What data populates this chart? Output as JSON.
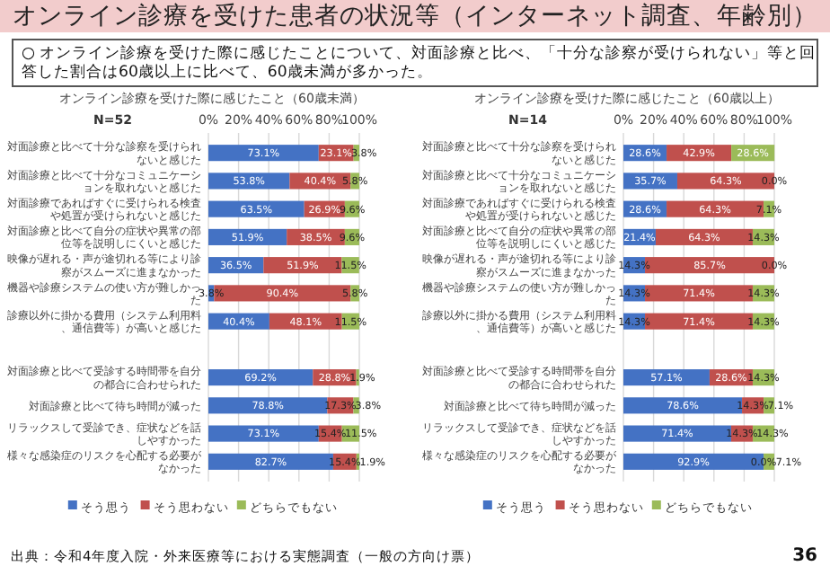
{
  "chart_data": [
    {
      "type": "bar",
      "orientation": "horizontal",
      "stacked": true,
      "title": "オンライン診療を受けた際に感じたこと（60歳未満）",
      "categories": [
        "対面診療と比べて十分な診察を受けられないと感じた",
        "対面診療と比べて十分なコミュニケーションを取れないと感じた",
        "対面診療であればすぐに受けられる検査や処置が受けられないと感じた",
        "対面診療と比べて自分の症状や異常の部位等を説明しにくいと感じた",
        "映像が遅れる・声が途切れる等により診察がスムーズに進まなかった",
        "機器や診療システムの使い方が難しかった",
        "診療以外に掛かる費用（システム利用料、通信費等）が高いと感じた",
        null,
        "対面診療と比べて受診する時間帯を自分の都合に合わせられた",
        "対面診療と比べて待ち時間が減った",
        "リラックスして受診でき、症状などを話しやすかった",
        "様々な感染症のリスクを心配する必要がなかった"
      ],
      "series": [
        {
          "name": "そう思う",
          "color": "#4472c4",
          "values": [
            73.1,
            53.8,
            63.5,
            51.9,
            36.5,
            3.8,
            40.4,
            null,
            69.2,
            78.8,
            73.1,
            82.7
          ],
          "value_labels": [
            "73.1%",
            "53.8%",
            "63.5%",
            "51.9%",
            "36.5%",
            "3.8%",
            "40.4%",
            null,
            "69.2%",
            "78.8%",
            "73.1%",
            "82.7%"
          ]
        },
        {
          "name": "そう思わない",
          "color": "#c0504d",
          "values": [
            23.1,
            40.4,
            26.9,
            38.5,
            51.9,
            90.4,
            48.1,
            null,
            28.8,
            17.3,
            15.4,
            15.4
          ],
          "value_labels": [
            "23.1%",
            "40.4%",
            "26.9%",
            "38.5%",
            "51.9%",
            "90.4%",
            "48.1%",
            null,
            "28.8%",
            "17.3%",
            "15.4%",
            "15.4%"
          ]
        },
        {
          "name": "どちらでもない",
          "color": "#9bbb59",
          "values": [
            3.8,
            5.8,
            9.6,
            9.6,
            11.5,
            5.8,
            11.5,
            null,
            1.9,
            3.8,
            11.5,
            1.9
          ],
          "value_labels": [
            "3.8%",
            "5.8%",
            "9.6%",
            "9.6%",
            "11.5%",
            "5.8%",
            "11.5%",
            null,
            "1.9%",
            "3.8%",
            "11.5%",
            "1.9%"
          ]
        }
      ],
      "xlim": [
        0,
        100
      ],
      "xticks": [
        {
          "value": 0,
          "label": "0%"
        },
        {
          "value": 20,
          "label": "20%"
        },
        {
          "value": 40,
          "label": "40%"
        },
        {
          "value": 60,
          "label": "60%"
        },
        {
          "value": 80,
          "label": "80%"
        },
        {
          "value": 100,
          "label": "100%"
        }
      ],
      "grid": "x",
      "legend": "bottom",
      "annotations": [
        "N=52",
        "オンライン診療を受けた患者の状況等（インターネット調査、年齢別）",
        "○ オンライン診療を受けた際に感じたことについて、対面診療と比べ、「十分な診察が受けられない」等と回答した割合は60歳以上に比べて、60歳未満が多かった。",
        "出典：令和4年度入院・外来医療等における実態調査（一般の方向け票）"
      ]
    },
    {
      "type": "bar",
      "orientation": "horizontal",
      "stacked": true,
      "title": "オンライン診療を受けた際に感じたこと（60歳以上）",
      "categories": [
        "対面診療と比べて十分な診察を受けられないと感じた",
        "対面診療と比べて十分なコミュニケーションを取れないと感じた",
        "対面診療であればすぐに受けられる検査や処置が受けられないと感じた",
        "対面診療と比べて自分の症状や異常の部位等を説明しにくいと感じた",
        "映像が遅れる・声が途切れる等により診察がスムーズに進まなかった",
        "機器や診療システムの使い方が難しかった",
        "診療以外に掛かる費用（システム利用料、通信費等）が高いと感じた",
        null,
        "対面診療と比べて受診する時間帯を自分の都合に合わせられた",
        "対面診療と比べて待ち時間が減った",
        "リラックスして受診でき、症状などを話しやすかった",
        "様々な感染症のリスクを心配する必要がなかった"
      ],
      "series": [
        {
          "name": "そう思う",
          "color": "#4472c4",
          "values": [
            28.6,
            35.7,
            28.6,
            21.4,
            14.3,
            14.3,
            14.3,
            null,
            57.1,
            78.6,
            71.4,
            92.9
          ],
          "value_labels": [
            "28.6%",
            "35.7%",
            "28.6%",
            "21.4%",
            "14.3%",
            "14.3%",
            "14.3%",
            null,
            "57.1%",
            "78.6%",
            "71.4%",
            "92.9%"
          ]
        },
        {
          "name": "そう思わない",
          "color": "#c0504d",
          "values": [
            42.9,
            64.3,
            64.3,
            64.3,
            85.7,
            71.4,
            71.4,
            null,
            28.6,
            14.3,
            14.3,
            0.0
          ],
          "value_labels": [
            "42.9%",
            "64.3%",
            "64.3%",
            "64.3%",
            "85.7%",
            "71.4%",
            "71.4%",
            null,
            "28.6%",
            "14.3%",
            "14.3%",
            "0.0%"
          ]
        },
        {
          "name": "どちらでもない",
          "color": "#9bbb59",
          "values": [
            28.6,
            0.0,
            7.1,
            14.3,
            0.0,
            14.3,
            14.3,
            null,
            14.3,
            7.1,
            14.3,
            7.1
          ],
          "value_labels": [
            "28.6%",
            "0.0%",
            "7.1%",
            "14.3%",
            "0.0%",
            "14.3%",
            "14.3%",
            null,
            "14.3%",
            "7.1%",
            "14.3%",
            "7.1%"
          ]
        }
      ],
      "xlim": [
        0,
        100
      ],
      "xticks": [
        {
          "value": 0,
          "label": "0%"
        },
        {
          "value": 20,
          "label": "20%"
        },
        {
          "value": 40,
          "label": "40%"
        },
        {
          "value": 60,
          "label": "60%"
        },
        {
          "value": 80,
          "label": "80%"
        },
        {
          "value": 100,
          "label": "100%"
        }
      ],
      "grid": "x",
      "legend": "bottom",
      "annotations": [
        "N=14",
        "36"
      ]
    }
  ]
}
